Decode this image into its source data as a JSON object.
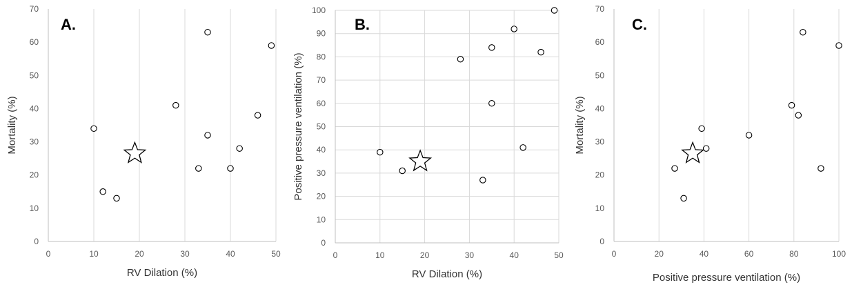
{
  "chart_data": [
    {
      "type": "scatter",
      "panel_label": "A.",
      "xlabel": "RV Dilation (%)",
      "ylabel": "Mortality (%)",
      "xlim": [
        0,
        50
      ],
      "ylim": [
        0,
        70
      ],
      "x_ticks": [
        0,
        10,
        20,
        30,
        40,
        50
      ],
      "y_ticks": [
        0,
        10,
        20,
        30,
        40,
        50,
        60,
        70
      ],
      "grid": "vertical",
      "points": [
        {
          "x": 10,
          "y": 34
        },
        {
          "x": 12,
          "y": 15
        },
        {
          "x": 15,
          "y": 13
        },
        {
          "x": 28,
          "y": 41
        },
        {
          "x": 33,
          "y": 22
        },
        {
          "x": 35,
          "y": 63
        },
        {
          "x": 35,
          "y": 32
        },
        {
          "x": 40,
          "y": 22
        },
        {
          "x": 42,
          "y": 28
        },
        {
          "x": 46,
          "y": 38
        },
        {
          "x": 49,
          "y": 59
        }
      ],
      "star": {
        "x": 19,
        "y": 26.5
      }
    },
    {
      "type": "scatter",
      "panel_label": "B.",
      "xlabel": "RV Dilation (%)",
      "ylabel": "Positive pressure ventilation (%)",
      "xlim": [
        0,
        50
      ],
      "ylim": [
        0,
        100
      ],
      "x_ticks": [
        0,
        10,
        20,
        30,
        40,
        50
      ],
      "y_ticks": [
        0,
        10,
        20,
        30,
        40,
        50,
        60,
        70,
        80,
        90,
        100
      ],
      "grid": "both",
      "points": [
        {
          "x": 10,
          "y": 39
        },
        {
          "x": 15,
          "y": 31
        },
        {
          "x": 28,
          "y": 79
        },
        {
          "x": 33,
          "y": 27
        },
        {
          "x": 35,
          "y": 84
        },
        {
          "x": 35,
          "y": 60
        },
        {
          "x": 40,
          "y": 92
        },
        {
          "x": 42,
          "y": 41
        },
        {
          "x": 46,
          "y": 82
        },
        {
          "x": 49,
          "y": 100
        }
      ],
      "star": {
        "x": 19,
        "y": 35
      }
    },
    {
      "type": "scatter",
      "panel_label": "C.",
      "xlabel": "Positive pressure ventilation (%)",
      "ylabel": "Mortality (%)",
      "xlim": [
        0,
        100
      ],
      "ylim": [
        0,
        70
      ],
      "x_ticks": [
        0,
        20,
        40,
        60,
        80,
        100
      ],
      "y_ticks": [
        0,
        10,
        20,
        30,
        40,
        50,
        60,
        70
      ],
      "grid": "vertical",
      "points": [
        {
          "x": 27,
          "y": 22
        },
        {
          "x": 31,
          "y": 13
        },
        {
          "x": 39,
          "y": 34
        },
        {
          "x": 41,
          "y": 28
        },
        {
          "x": 60,
          "y": 32
        },
        {
          "x": 79,
          "y": 41
        },
        {
          "x": 82,
          "y": 38
        },
        {
          "x": 84,
          "y": 63
        },
        {
          "x": 92,
          "y": 22
        },
        {
          "x": 100,
          "y": 59
        }
      ],
      "star": {
        "x": 35,
        "y": 26.5
      }
    }
  ]
}
